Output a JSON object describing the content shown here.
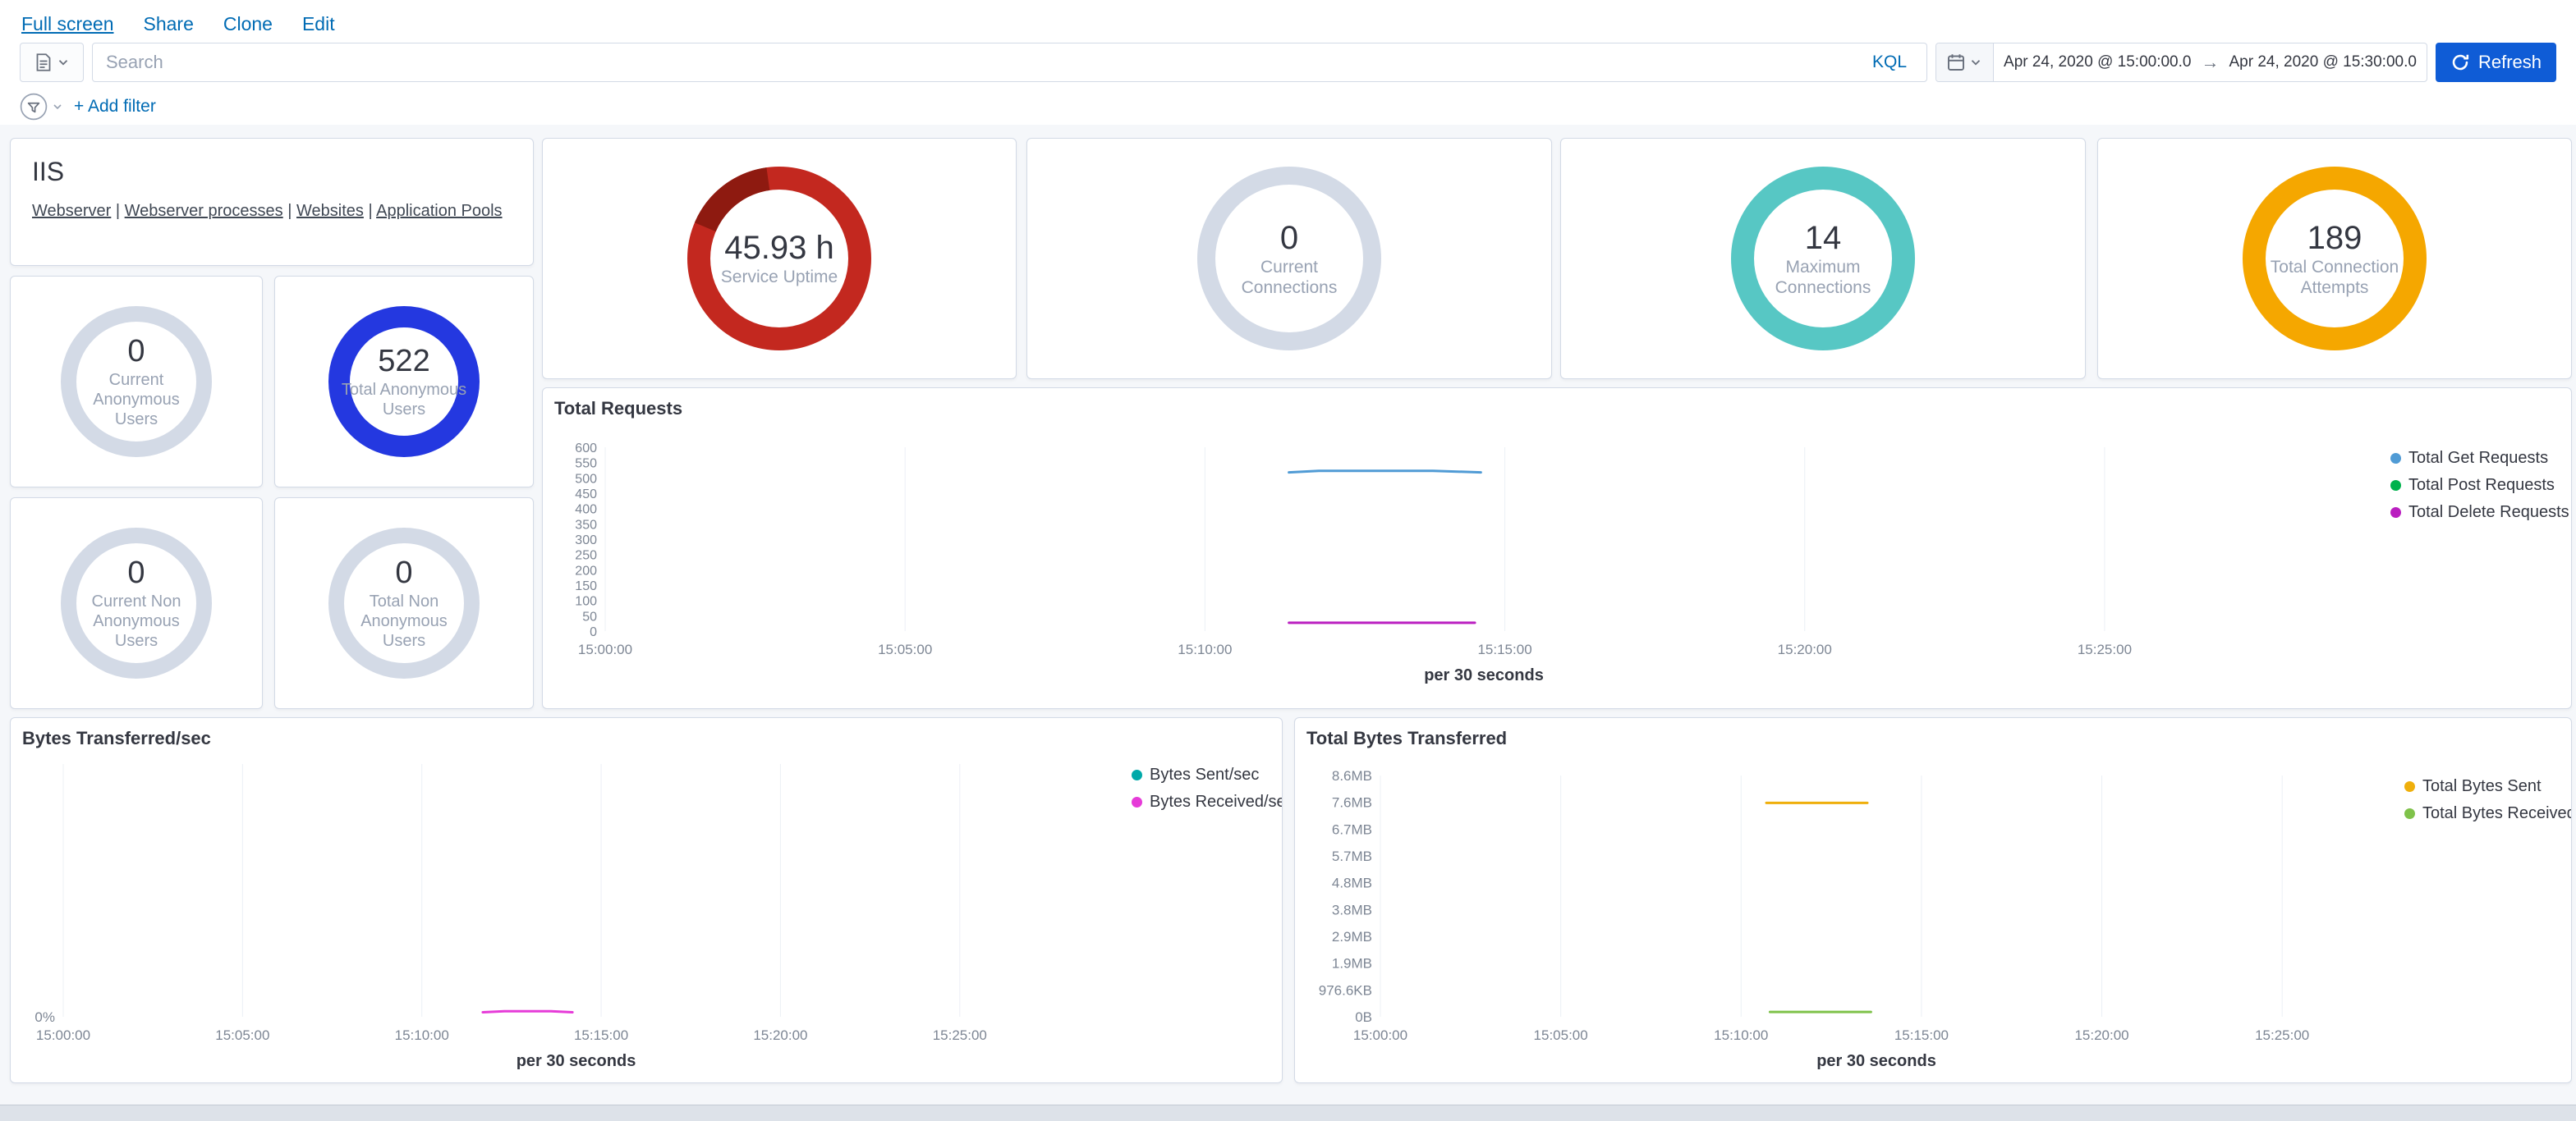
{
  "header": {
    "nav_links": [
      {
        "label": "Full screen",
        "active": true
      },
      {
        "label": "Share",
        "active": false
      },
      {
        "label": "Clone",
        "active": false
      },
      {
        "label": "Edit",
        "active": false
      }
    ],
    "search": {
      "placeholder": "Search",
      "language": "KQL"
    },
    "date_range": {
      "start": "Apr 24, 2020 @ 15:00:00.0",
      "arrow": "→",
      "end": "Apr 24, 2020 @ 15:30:00.0"
    },
    "refresh_label": "Refresh",
    "add_filter_label": "+ Add filter"
  },
  "iis_panel": {
    "title": "IIS",
    "links": [
      "Webserver",
      "Webserver processes",
      "Websites",
      "Application Pools"
    ],
    "separator": "|"
  },
  "gauges": [
    {
      "id": "service-uptime",
      "value": "45.93 h",
      "label": "Service Uptime",
      "color": "#C3281F",
      "remainder_color": "#8E1A10",
      "size": "large"
    },
    {
      "id": "current-connections",
      "value": "0",
      "label": "Current Connections",
      "color": "#D3DAE6",
      "size": "large"
    },
    {
      "id": "maximum-connections",
      "value": "14",
      "label": "Maximum Connections",
      "color": "#57C7C4",
      "size": "large"
    },
    {
      "id": "total-connection-attempts",
      "value": "189",
      "label": "Total Connection Attempts",
      "color": "#F5A700",
      "size": "large"
    },
    {
      "id": "current-anonymous-users",
      "value": "0",
      "label": "Current Anonymous Users",
      "color": "#D3DAE6",
      "size": "small"
    },
    {
      "id": "total-anonymous-users",
      "value": "522",
      "label": "Total Anonymous Users",
      "color": "#2438E0",
      "size": "small"
    },
    {
      "id": "current-non-anonymous-users",
      "value": "0",
      "label": "Current Non Anonymous Users",
      "color": "#D3DAE6",
      "size": "small"
    },
    {
      "id": "total-non-anonymous-users",
      "value": "0",
      "label": "Total Non Anonymous Users",
      "color": "#D3DAE6",
      "size": "small"
    }
  ],
  "chart_data": [
    {
      "type": "line",
      "title": "Total Requests",
      "xlabel": "per 30 seconds",
      "x_ticks": [
        "15:00:00",
        "15:05:00",
        "15:10:00",
        "15:15:00",
        "15:20:00",
        "15:25:00"
      ],
      "x_tick_minutes": [
        0,
        5,
        10,
        15,
        20,
        25
      ],
      "x_range_minutes": [
        0,
        29.3
      ],
      "ylim": [
        0,
        600
      ],
      "grid": "vertical",
      "legend_position": "right",
      "y_ticks": [
        {
          "value": 0,
          "label": "0"
        },
        {
          "value": 50,
          "label": "50"
        },
        {
          "value": 100,
          "label": "100"
        },
        {
          "value": 150,
          "label": "150"
        },
        {
          "value": 200,
          "label": "200"
        },
        {
          "value": 250,
          "label": "250"
        },
        {
          "value": 300,
          "label": "300"
        },
        {
          "value": 350,
          "label": "350"
        },
        {
          "value": 400,
          "label": "400"
        },
        {
          "value": 450,
          "label": "450"
        },
        {
          "value": 500,
          "label": "500"
        },
        {
          "value": 550,
          "label": "550"
        },
        {
          "value": 600,
          "label": "600"
        }
      ],
      "series": [
        {
          "name": "Total Get Requests",
          "color": "#509BD5",
          "points": [
            [
              11.4,
              518
            ],
            [
              11.9,
              523
            ],
            [
              13.8,
              523
            ],
            [
              14.6,
              518
            ]
          ]
        },
        {
          "name": "Total Post Requests",
          "color": "#00B24D",
          "points": []
        },
        {
          "name": "Total Delete Requests",
          "color": "#BA1EC0",
          "points": [
            [
              11.4,
              27
            ],
            [
              14.5,
              27
            ]
          ]
        }
      ]
    },
    {
      "type": "line",
      "title": "Bytes Transferred/sec",
      "xlabel": "per 30 seconds",
      "x_ticks": [
        "15:00:00",
        "15:05:00",
        "15:10:00",
        "15:15:00",
        "15:20:00",
        "15:25:00"
      ],
      "x_tick_minutes": [
        0,
        5,
        10,
        15,
        20,
        25
      ],
      "x_range_minutes": [
        0,
        28.6
      ],
      "ylim": [
        0,
        1
      ],
      "grid": "vertical",
      "legend_position": "right",
      "y_ticks": [
        {
          "value": 0,
          "label": "0%"
        }
      ],
      "series": [
        {
          "name": "Bytes Sent/sec",
          "color": "#00A9A9",
          "points": []
        },
        {
          "name": "Bytes Received/sec",
          "color": "#E63BD8",
          "points": [
            [
              11.7,
              0.018
            ],
            [
              12.3,
              0.022
            ],
            [
              13.6,
              0.022
            ],
            [
              14.2,
              0.018
            ]
          ]
        }
      ]
    },
    {
      "type": "line",
      "title": "Total Bytes Transferred",
      "xlabel": "per 30 seconds",
      "x_ticks": [
        "15:00:00",
        "15:05:00",
        "15:10:00",
        "15:15:00",
        "15:20:00",
        "15:25:00"
      ],
      "x_tick_minutes": [
        0,
        5,
        10,
        15,
        20,
        25
      ],
      "x_range_minutes": [
        0,
        27.5
      ],
      "ylim": [
        0,
        9
      ],
      "grid": "vertical",
      "legend_position": "right",
      "y_ticks": [
        {
          "value": 0,
          "label": "0B"
        },
        {
          "value": 1,
          "label": "976.6KB"
        },
        {
          "value": 2,
          "label": "1.9MB"
        },
        {
          "value": 3,
          "label": "2.9MB"
        },
        {
          "value": 4,
          "label": "3.8MB"
        },
        {
          "value": 5,
          "label": "4.8MB"
        },
        {
          "value": 6,
          "label": "5.7MB"
        },
        {
          "value": 7,
          "label": "6.7MB"
        },
        {
          "value": 8,
          "label": "7.6MB"
        },
        {
          "value": 9,
          "label": "8.6MB"
        }
      ],
      "series": [
        {
          "name": "Total Bytes Sent",
          "color": "#EFAF0C",
          "points": [
            [
              10.7,
              7.98
            ],
            [
              13.5,
              7.98
            ]
          ]
        },
        {
          "name": "Total Bytes Received",
          "color": "#7FC24A",
          "points": [
            [
              10.8,
              0.18
            ],
            [
              13.6,
              0.18
            ]
          ]
        }
      ]
    }
  ]
}
